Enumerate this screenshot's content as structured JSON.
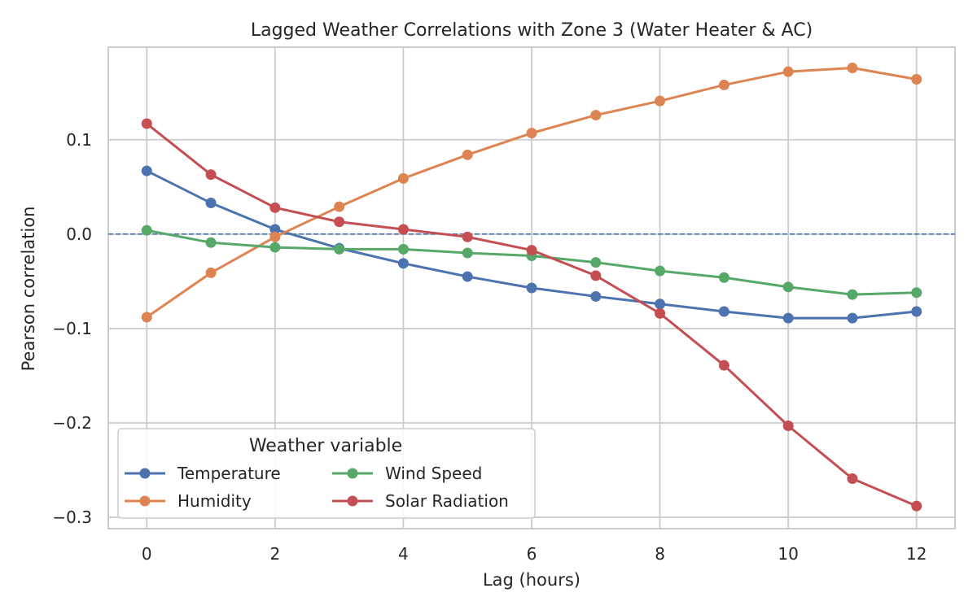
{
  "chart_data": {
    "type": "line",
    "title": "Lagged Weather Correlations with Zone 3 (Water Heater & AC)",
    "xlabel": "Lag (hours)",
    "ylabel": "Pearson correlation",
    "x": [
      0,
      1,
      2,
      3,
      4,
      5,
      6,
      7,
      8,
      9,
      10,
      11,
      12
    ],
    "xlim": [
      -0.6,
      12.6
    ],
    "ylim": [
      -0.312,
      0.198
    ],
    "xticks": [
      0,
      2,
      4,
      6,
      8,
      10,
      12
    ],
    "xtick_labels": [
      "0",
      "2",
      "4",
      "6",
      "8",
      "10",
      "12"
    ],
    "yticks": [
      -0.3,
      -0.2,
      -0.1,
      0.0,
      0.1
    ],
    "ytick_labels": [
      "−0.3",
      "−0.2",
      "−0.1",
      "0.0",
      "0.1"
    ],
    "grid": true,
    "reference_line": {
      "y": 0,
      "style": "dashed",
      "color": "#4c72b0"
    },
    "legend": {
      "title": "Weather variable",
      "placement": "lower-left",
      "columns": 2
    },
    "series": [
      {
        "name": "Temperature",
        "color": "#4c72b0",
        "values": [
          0.067,
          0.033,
          0.005,
          -0.015,
          -0.031,
          -0.045,
          -0.057,
          -0.066,
          -0.074,
          -0.082,
          -0.089,
          -0.089,
          -0.082
        ]
      },
      {
        "name": "Humidity",
        "color": "#dd8452",
        "values": [
          -0.088,
          -0.041,
          -0.003,
          0.029,
          0.059,
          0.084,
          0.107,
          0.126,
          0.141,
          0.158,
          0.172,
          0.176,
          0.164
        ]
      },
      {
        "name": "Wind Speed",
        "color": "#55a868",
        "values": [
          0.004,
          -0.009,
          -0.014,
          -0.016,
          -0.016,
          -0.02,
          -0.023,
          -0.03,
          -0.039,
          -0.046,
          -0.056,
          -0.064,
          -0.062
        ]
      },
      {
        "name": "Solar Radiation",
        "color": "#c44e52",
        "values": [
          0.117,
          0.063,
          0.028,
          0.013,
          0.005,
          -0.003,
          -0.017,
          -0.044,
          -0.084,
          -0.139,
          -0.203,
          -0.259,
          -0.288
        ]
      }
    ]
  }
}
